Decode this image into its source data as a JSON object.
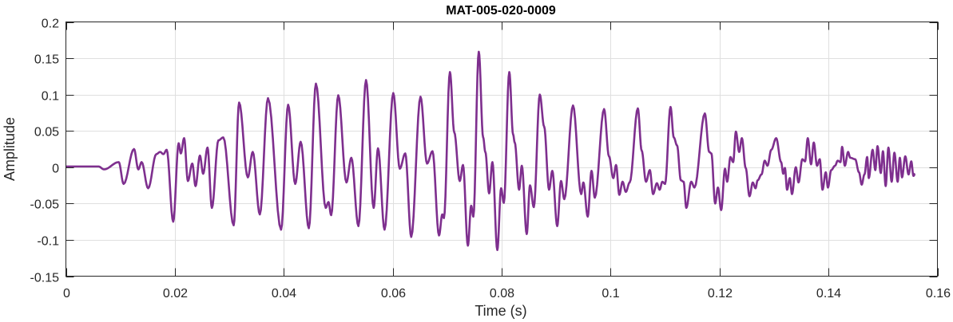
{
  "chart_data": {
    "type": "line",
    "title": "MAT-005-020-0009",
    "xlabel": "Time (s)",
    "ylabel": "Amplitude",
    "xlim": [
      0,
      0.16
    ],
    "ylim": [
      -0.15,
      0.2
    ],
    "xticks": [
      0,
      0.02,
      0.04,
      0.06,
      0.08,
      0.1,
      0.12,
      0.14,
      0.16
    ],
    "xtick_labels": [
      "0",
      "0.02",
      "0.04",
      "0.06",
      "0.08",
      "0.1",
      "0.12",
      "0.14",
      "0.16"
    ],
    "yticks": [
      0.2,
      0.15,
      0.1,
      0.05,
      0,
      -0.05,
      -0.1,
      -0.15
    ],
    "ytick_labels": [
      "0.2",
      "0.15",
      "0.1",
      "0.05",
      "0",
      "-0.05",
      "-0.1",
      "-0.15"
    ],
    "grid": true,
    "series": [
      {
        "name": "waveform",
        "color": "#7E2F8E",
        "points": [
          [
            0,
            0.001
          ],
          [
            0.006,
            0.001
          ],
          [
            0.007,
            -0.003
          ],
          [
            0.0097,
            0.007
          ],
          [
            0.0106,
            -0.023
          ],
          [
            0.0125,
            0.025
          ],
          [
            0.0133,
            -0.003
          ],
          [
            0.0139,
            0.007
          ],
          [
            0.0151,
            -0.029
          ],
          [
            0.0166,
            0.018
          ],
          [
            0.0173,
            0.021
          ],
          [
            0.0179,
            0.018
          ],
          [
            0.0185,
            0.024
          ],
          [
            0.0197,
            -0.075
          ],
          [
            0.0207,
            0.033
          ],
          [
            0.0211,
            0.019
          ],
          [
            0.0217,
            0.04
          ],
          [
            0.0224,
            -0.019
          ],
          [
            0.0232,
            0.005
          ],
          [
            0.0238,
            -0.026
          ],
          [
            0.0246,
            0.016
          ],
          [
            0.0252,
            -0.009
          ],
          [
            0.026,
            0.027
          ],
          [
            0.0268,
            -0.056
          ],
          [
            0.028,
            0.037
          ],
          [
            0.0289,
            0.041
          ],
          [
            0.0308,
            -0.08
          ],
          [
            0.0318,
            0.089
          ],
          [
            0.0334,
            -0.014
          ],
          [
            0.0343,
            0.021
          ],
          [
            0.0356,
            -0.065
          ],
          [
            0.0371,
            0.095
          ],
          [
            0.0395,
            -0.086
          ],
          [
            0.0408,
            0.086
          ],
          [
            0.0421,
            -0.023
          ],
          [
            0.0431,
            0.035
          ],
          [
            0.0446,
            -0.084
          ],
          [
            0.0459,
            0.115
          ],
          [
            0.0477,
            -0.056
          ],
          [
            0.0482,
            -0.048
          ],
          [
            0.0487,
            -0.066
          ],
          [
            0.05,
            0.099
          ],
          [
            0.0515,
            -0.021
          ],
          [
            0.0524,
            0.013
          ],
          [
            0.0537,
            -0.081
          ],
          [
            0.0551,
            0.12
          ],
          [
            0.0565,
            -0.056
          ],
          [
            0.0573,
            0.026
          ],
          [
            0.0585,
            -0.086
          ],
          [
            0.0601,
            0.102
          ],
          [
            0.0613,
            -0.002
          ],
          [
            0.0623,
            0.019
          ],
          [
            0.0634,
            -0.096
          ],
          [
            0.0651,
            0.097
          ],
          [
            0.0663,
            0.005
          ],
          [
            0.0673,
            0.022
          ],
          [
            0.0685,
            -0.094
          ],
          [
            0.0691,
            -0.065
          ],
          [
            0.0694,
            -0.07
          ],
          [
            0.0705,
            0.131
          ],
          [
            0.0713,
            0.048
          ],
          [
            0.0723,
            -0.019
          ],
          [
            0.0729,
            0.003
          ],
          [
            0.0738,
            -0.108
          ],
          [
            0.0744,
            -0.053
          ],
          [
            0.0748,
            -0.068
          ],
          [
            0.0758,
            0.159
          ],
          [
            0.0766,
            0.041
          ],
          [
            0.077,
            0.021
          ],
          [
            0.0777,
            -0.036
          ],
          [
            0.0783,
            0.007
          ],
          [
            0.0792,
            -0.114
          ],
          [
            0.0799,
            -0.029
          ],
          [
            0.0804,
            -0.049
          ],
          [
            0.0814,
            0.131
          ],
          [
            0.0821,
            0.045
          ],
          [
            0.0824,
            0.034
          ],
          [
            0.0832,
            -0.031
          ],
          [
            0.0837,
            0.002
          ],
          [
            0.0846,
            -0.092
          ],
          [
            0.0852,
            -0.025
          ],
          [
            0.0859,
            -0.055
          ],
          [
            0.087,
            0.1
          ],
          [
            0.0878,
            0.056
          ],
          [
            0.0887,
            -0.031
          ],
          [
            0.0893,
            -0.005
          ],
          [
            0.0902,
            -0.081
          ],
          [
            0.0909,
            -0.019
          ],
          [
            0.0915,
            -0.044
          ],
          [
            0.0931,
            0.085
          ],
          [
            0.0946,
            -0.037
          ],
          [
            0.095,
            -0.021
          ],
          [
            0.0958,
            -0.068
          ],
          [
            0.0965,
            -0.005
          ],
          [
            0.0971,
            -0.042
          ],
          [
            0.0988,
            0.08
          ],
          [
            0.0997,
            0.015
          ],
          [
            0.1005,
            -0.015
          ],
          [
            0.101,
            0.003
          ],
          [
            0.1016,
            -0.038
          ],
          [
            0.1022,
            -0.02
          ],
          [
            0.1028,
            -0.034
          ],
          [
            0.1035,
            -0.021
          ],
          [
            0.105,
            0.081
          ],
          [
            0.1057,
            0.023
          ],
          [
            0.1065,
            -0.02
          ],
          [
            0.1072,
            -0.004
          ],
          [
            0.1078,
            -0.037
          ],
          [
            0.1085,
            -0.022
          ],
          [
            0.109,
            -0.031
          ],
          [
            0.1095,
            -0.02
          ],
          [
            0.11,
            -0.023
          ],
          [
            0.111,
            0.083
          ],
          [
            0.1116,
            0.041
          ],
          [
            0.1122,
            0.03
          ],
          [
            0.1129,
            -0.018
          ],
          [
            0.1134,
            -0.02
          ],
          [
            0.1139,
            -0.056
          ],
          [
            0.1148,
            -0.02
          ],
          [
            0.1154,
            -0.028
          ],
          [
            0.1173,
            0.074
          ],
          [
            0.1181,
            0.021
          ],
          [
            0.1185,
            0.019
          ],
          [
            0.1192,
            -0.05
          ],
          [
            0.1197,
            -0.028
          ],
          [
            0.1203,
            -0.059
          ],
          [
            0.121,
            -0.002
          ],
          [
            0.1214,
            -0.02
          ],
          [
            0.122,
            0.014
          ],
          [
            0.1225,
            0.007
          ],
          [
            0.123,
            0.049
          ],
          [
            0.1236,
            0.021
          ],
          [
            0.1241,
            0.04
          ],
          [
            0.1248,
            -0.001
          ],
          [
            0.1255,
            -0.04
          ],
          [
            0.1261,
            -0.021
          ],
          [
            0.1266,
            -0.029
          ],
          [
            0.127,
            -0.018
          ],
          [
            0.1277,
            -0.01
          ],
          [
            0.1283,
            0.009
          ],
          [
            0.1288,
            0.002
          ],
          [
            0.1295,
            0.024
          ],
          [
            0.1304,
            0.04
          ],
          [
            0.1313,
            0.007
          ],
          [
            0.1317,
            -0.009
          ],
          [
            0.132,
            -0.001
          ],
          [
            0.1324,
            -0.031
          ],
          [
            0.1329,
            -0.015
          ],
          [
            0.1333,
            -0.037
          ],
          [
            0.134,
            0.0
          ],
          [
            0.1345,
            -0.021
          ],
          [
            0.1352,
            0.011
          ],
          [
            0.1357,
            0.008
          ],
          [
            0.1362,
            0.04
          ],
          [
            0.1368,
            0.004
          ],
          [
            0.1373,
            0.034
          ],
          [
            0.1379,
            0.002
          ],
          [
            0.1384,
            0.011
          ],
          [
            0.1389,
            -0.031
          ],
          [
            0.1395,
            -0.007
          ],
          [
            0.1399,
            -0.028
          ],
          [
            0.1405,
            -0.004
          ],
          [
            0.1412,
            0.002
          ],
          [
            0.1417,
            0.009
          ],
          [
            0.1422,
            0.007
          ],
          [
            0.1425,
            0.028
          ],
          [
            0.143,
            0.002
          ],
          [
            0.1436,
            0.021
          ],
          [
            0.144,
            0.013
          ],
          [
            0.1449,
            0.011
          ],
          [
            0.1456,
            -0.007
          ],
          [
            0.1461,
            -0.024
          ],
          [
            0.1466,
            -0.01
          ],
          [
            0.1471,
            0.014
          ],
          [
            0.1474,
            -0.015
          ],
          [
            0.1481,
            0.024
          ],
          [
            0.1486,
            -0.004
          ],
          [
            0.149,
            0.029
          ],
          [
            0.1496,
            -0.008
          ],
          [
            0.15,
            0.022
          ],
          [
            0.1505,
            -0.026
          ],
          [
            0.151,
            0.027
          ],
          [
            0.1516,
            -0.02
          ],
          [
            0.1521,
            0.02
          ],
          [
            0.1527,
            -0.02
          ],
          [
            0.1531,
            0.013
          ],
          [
            0.1535,
            -0.014
          ],
          [
            0.1541,
            0.015
          ],
          [
            0.1547,
            -0.01
          ],
          [
            0.1552,
            0.008
          ],
          [
            0.1556,
            -0.012
          ],
          [
            0.1559,
            -0.009
          ]
        ]
      }
    ]
  }
}
